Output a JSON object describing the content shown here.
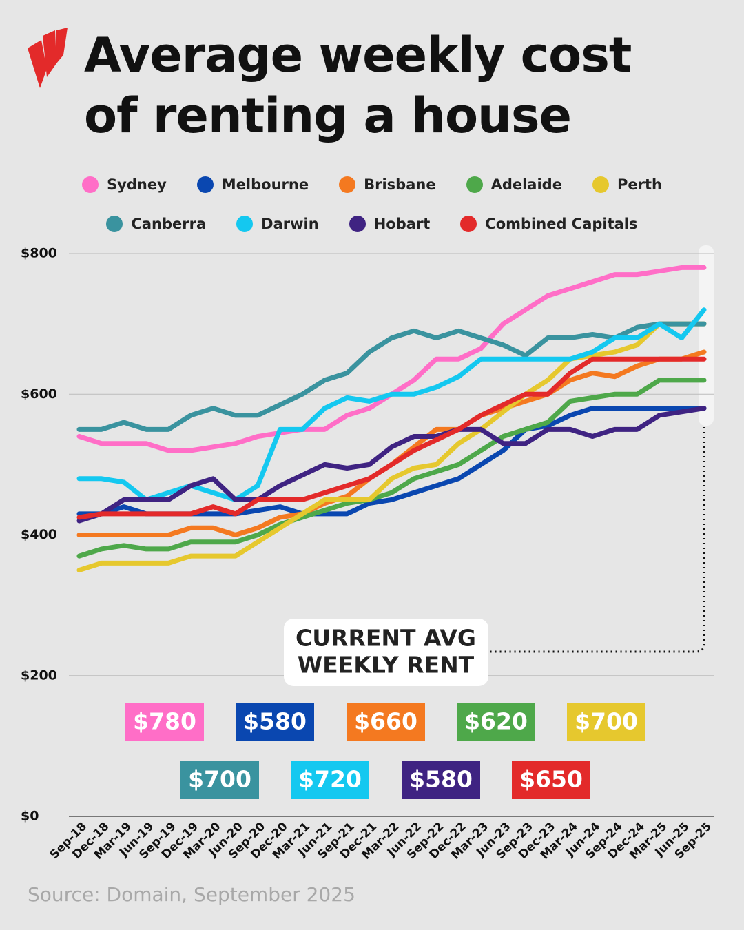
{
  "chart_data": {
    "type": "line",
    "title": "Average weekly cost of renting a house",
    "source": "Source: Domain, September 2025",
    "annotation": [
      "CURRENT AVG",
      "WEEKLY RENT"
    ],
    "categories": [
      "Sep-18",
      "Dec-18",
      "Mar-19",
      "Jun-19",
      "Sep-19",
      "Dec-19",
      "Mar-20",
      "Jun-20",
      "Sep-20",
      "Dec-20",
      "Mar-21",
      "Jun-21",
      "Sep-21",
      "Dec-21",
      "Mar-22",
      "Jun-22",
      "Sep-22",
      "Dec-22",
      "Mar-23",
      "Jun-23",
      "Sep-23",
      "Dec-23",
      "Mar-24",
      "Jun-24",
      "Sep-24",
      "Dec-24",
      "Mar-25",
      "Jun-25",
      "Sep-25"
    ],
    "ylim": [
      0,
      800
    ],
    "yticks": [
      {
        "value": 0,
        "label": "$0"
      },
      {
        "value": 200,
        "label": "$200"
      },
      {
        "value": 400,
        "label": "$400"
      },
      {
        "value": 600,
        "label": "$600"
      },
      {
        "value": 800,
        "label": "$800"
      }
    ],
    "grid": true,
    "series": [
      {
        "name": "Sydney",
        "color": "#ff6ec7",
        "last_value_label": "$780",
        "values": [
          540,
          530,
          530,
          530,
          520,
          520,
          525,
          530,
          540,
          545,
          550,
          550,
          570,
          580,
          600,
          620,
          650,
          650,
          665,
          700,
          720,
          740,
          750,
          760,
          770,
          770,
          775,
          780,
          780
        ]
      },
      {
        "name": "Melbourne",
        "color": "#0a47b0",
        "last_value_label": "$580",
        "values": [
          430,
          430,
          440,
          430,
          430,
          430,
          430,
          430,
          435,
          440,
          430,
          430,
          430,
          445,
          450,
          460,
          470,
          480,
          500,
          520,
          550,
          555,
          570,
          580,
          580,
          580,
          580,
          580,
          580
        ]
      },
      {
        "name": "Brisbane",
        "color": "#f47920",
        "last_value_label": "$660",
        "values": [
          400,
          400,
          400,
          400,
          400,
          410,
          410,
          400,
          410,
          425,
          430,
          445,
          455,
          480,
          500,
          525,
          550,
          550,
          570,
          580,
          590,
          600,
          620,
          630,
          625,
          640,
          650,
          650,
          660
        ]
      },
      {
        "name": "Adelaide",
        "color": "#4ea84a",
        "last_value_label": "$620",
        "values": [
          370,
          380,
          385,
          380,
          380,
          390,
          390,
          390,
          400,
          415,
          425,
          435,
          445,
          450,
          460,
          480,
          490,
          500,
          520,
          540,
          550,
          560,
          590,
          595,
          600,
          600,
          620,
          620,
          620
        ]
      },
      {
        "name": "Perth",
        "color": "#e6c82e",
        "last_value_label": "$700",
        "values": [
          350,
          360,
          360,
          360,
          360,
          370,
          370,
          370,
          390,
          410,
          430,
          450,
          450,
          450,
          480,
          495,
          500,
          530,
          550,
          575,
          600,
          620,
          650,
          655,
          660,
          670,
          700,
          700,
          700
        ]
      },
      {
        "name": "Canberra",
        "color": "#3a939f",
        "last_value_label": "$700",
        "values": [
          550,
          550,
          560,
          550,
          550,
          570,
          580,
          570,
          570,
          585,
          600,
          620,
          630,
          660,
          680,
          690,
          680,
          690,
          680,
          670,
          655,
          680,
          680,
          685,
          680,
          695,
          700,
          700,
          700
        ]
      },
      {
        "name": "Darwin",
        "color": "#14c8f0",
        "last_value_label": "$720",
        "values": [
          480,
          480,
          475,
          450,
          460,
          470,
          460,
          450,
          470,
          550,
          550,
          580,
          595,
          590,
          600,
          600,
          610,
          625,
          650,
          650,
          650,
          650,
          650,
          660,
          680,
          680,
          700,
          680,
          720
        ]
      },
      {
        "name": "Hobart",
        "color": "#3f2382",
        "last_value_label": "$580",
        "values": [
          420,
          430,
          450,
          450,
          450,
          470,
          480,
          450,
          450,
          470,
          485,
          500,
          495,
          500,
          525,
          540,
          540,
          550,
          550,
          530,
          530,
          550,
          550,
          540,
          550,
          550,
          570,
          575,
          580
        ]
      },
      {
        "name": "Combined Capitals",
        "color": "#e32a2a",
        "last_value_label": "$650",
        "values": [
          425,
          430,
          430,
          430,
          430,
          430,
          440,
          430,
          450,
          450,
          450,
          460,
          470,
          480,
          500,
          520,
          535,
          550,
          570,
          585,
          600,
          600,
          630,
          650,
          650,
          650,
          650,
          650,
          650
        ]
      }
    ]
  }
}
